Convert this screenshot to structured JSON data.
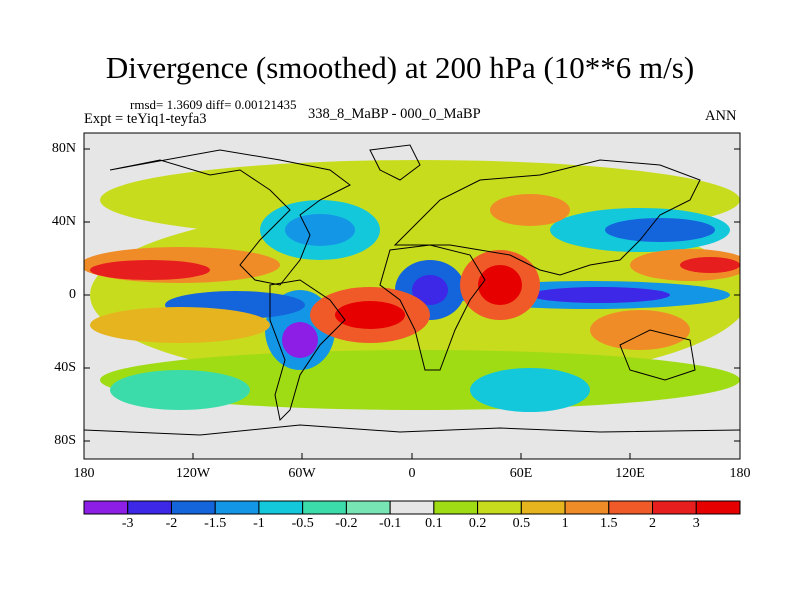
{
  "title": "Divergence (smoothed) at 200 hPa (10**6 m/s)",
  "stats_line": "rmsd= 1.3609 diff= 0.00121435",
  "experiment_label": "Expt = teYiq1-teyfa3",
  "period_label": "338_8_MaBP - 000_0_MaBP",
  "season_label": "ANN",
  "lat_ticks": [
    "80N",
    "40N",
    "0",
    "40S",
    "80S"
  ],
  "lon_ticks": [
    "180",
    "120W",
    "60W",
    "0",
    "60E",
    "120E",
    "180"
  ],
  "colorbar": {
    "labels": [
      "-3",
      "-2",
      "-1.5",
      "-1",
      "-0.5",
      "-0.2",
      "-0.1",
      "0.1",
      "0.2",
      "0.5",
      "1",
      "1.5",
      "2",
      "3"
    ],
    "colors": [
      "#8c1ee6",
      "#3c28e6",
      "#1464dc",
      "#1496e6",
      "#14c8dc",
      "#3cdcaa",
      "#78e6b4",
      "#e6e6e6",
      "#a0dc14",
      "#c8dc1e",
      "#e6b41e",
      "#f08c28",
      "#f05a28",
      "#e61e1e",
      "#e60000"
    ]
  },
  "map_colors": {
    "background": "#e6e6e6",
    "coast": "#000000",
    "frame": "#000000"
  }
}
